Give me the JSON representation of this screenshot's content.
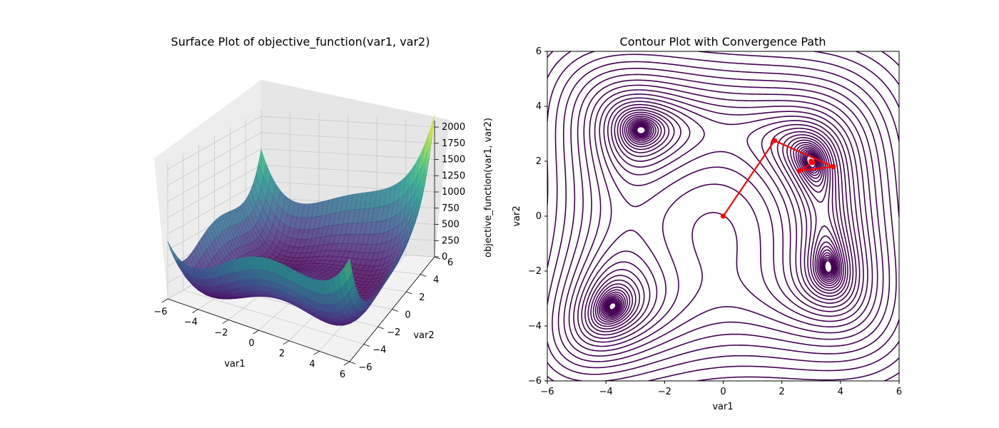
{
  "chart_data": [
    {
      "type": "surface3d",
      "title": "Surface Plot of objective_function(var1, var2)",
      "xlabel": "var1",
      "ylabel": "var2",
      "zlabel": "objective_function(var1, var2)",
      "xlim": [
        -6,
        6
      ],
      "ylim": [
        -6,
        6
      ],
      "zlim": [
        0,
        2100
      ],
      "xticks": [
        -6,
        -4,
        -2,
        0,
        2,
        4,
        6
      ],
      "yticks": [
        -6,
        -4,
        -2,
        0,
        2,
        4,
        6
      ],
      "zticks": [
        0,
        250,
        500,
        750,
        1000,
        1250,
        1500,
        1750,
        2000
      ],
      "colormap": "viridis",
      "grid": true
    },
    {
      "type": "contour",
      "title": "Contour Plot with Convergence Path",
      "xlabel": "var1",
      "ylabel": "var2",
      "xlim": [
        -6,
        6
      ],
      "ylim": [
        -6,
        6
      ],
      "xticks": [
        -6,
        -4,
        -2,
        0,
        2,
        4,
        6
      ],
      "yticks": [
        -6,
        -4,
        -2,
        0,
        2,
        4,
        6
      ],
      "contour_color": "#440154",
      "minima": [
        [
          3.0,
          2.0
        ],
        [
          -2.805,
          3.131
        ],
        [
          -3.779,
          -3.283
        ],
        [
          3.584,
          -1.848
        ]
      ],
      "path": {
        "color": "#ff0000",
        "points": [
          [
            0,
            0
          ],
          [
            1.75,
            2.75
          ],
          [
            3.75,
            1.8
          ],
          [
            2.6,
            1.65
          ],
          [
            3.05,
            1.95
          ],
          [
            3.0,
            2.0
          ]
        ]
      }
    }
  ]
}
